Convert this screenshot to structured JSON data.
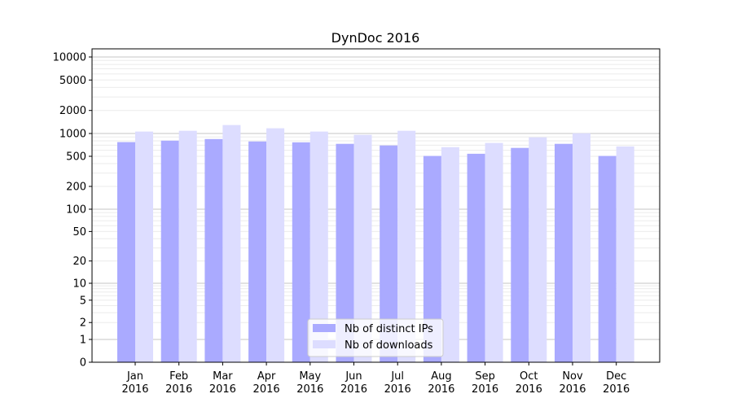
{
  "chart_data": {
    "type": "bar",
    "title": "DynDoc 2016",
    "xlabel": "",
    "ylabel": "",
    "yscale": "symlog",
    "ylim": [
      0,
      12000
    ],
    "yticks": [
      0,
      1,
      2,
      5,
      10,
      20,
      50,
      100,
      200,
      500,
      1000,
      2000,
      5000,
      10000
    ],
    "ytick_labels": [
      "0",
      "1",
      "2",
      "5",
      "10",
      "20",
      "50",
      "100",
      "200",
      "500",
      "1000",
      "2000",
      "5000",
      "10000"
    ],
    "categories": [
      "Jan\n2016",
      "Feb\n2016",
      "Mar\n2016",
      "Apr\n2016",
      "May\n2016",
      "Jun\n2016",
      "Jul\n2016",
      "Aug\n2016",
      "Sep\n2016",
      "Oct\n2016",
      "Nov\n2016",
      "Dec\n2016"
    ],
    "category_labels": [
      [
        "Jan",
        "2016"
      ],
      [
        "Feb",
        "2016"
      ],
      [
        "Mar",
        "2016"
      ],
      [
        "Apr",
        "2016"
      ],
      [
        "May",
        "2016"
      ],
      [
        "Jun",
        "2016"
      ],
      [
        "Jul",
        "2016"
      ],
      [
        "Aug",
        "2016"
      ],
      [
        "Sep",
        "2016"
      ],
      [
        "Oct",
        "2016"
      ],
      [
        "Nov",
        "2016"
      ],
      [
        "Dec",
        "2016"
      ]
    ],
    "series": [
      {
        "name": "Nb of distinct IPs",
        "color": "#aaaaff",
        "values": [
          770,
          805,
          845,
          785,
          765,
          730,
          695,
          505,
          540,
          645,
          730,
          505
        ]
      },
      {
        "name": "Nb of downloads",
        "color": "#ddddff",
        "values": [
          1060,
          1085,
          1290,
          1170,
          1060,
          960,
          1085,
          660,
          750,
          890,
          1005,
          675
        ]
      }
    ],
    "grid": true,
    "legend": "bottom-center"
  }
}
